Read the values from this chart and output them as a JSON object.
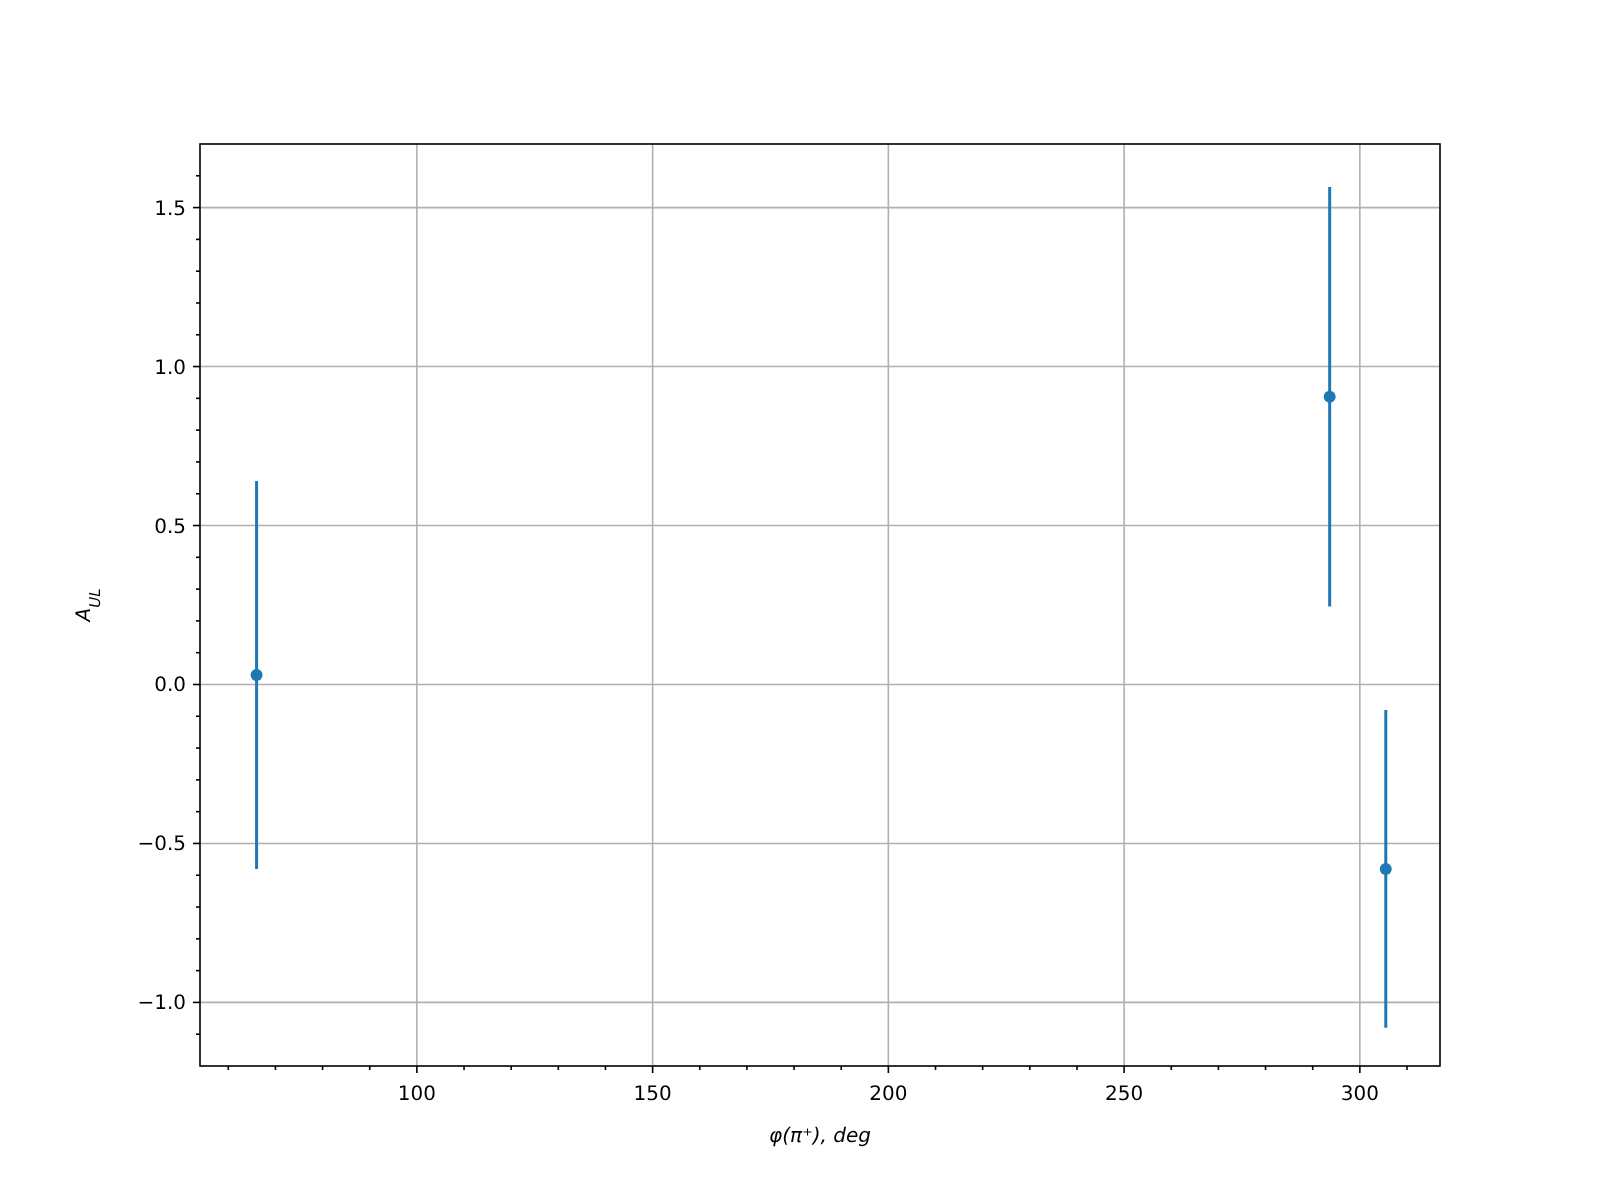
{
  "chart_data": {
    "type": "scatter",
    "xlabel": "φ(π⁺), deg",
    "ylabel": "A$_{UL}$",
    "x": [
      66,
      293.6,
      305.5
    ],
    "series": [
      {
        "color": "#1f77b4",
        "values": [
          0.03,
          0.905,
          -0.58
        ],
        "errors": [
          0.61,
          0.66,
          0.5
        ]
      }
    ],
    "xlim": [
      54,
      317
    ],
    "ylim": [
      -1.2,
      1.7
    ],
    "xticks": [
      {
        "value": 60,
        "label": null
      },
      {
        "value": 70,
        "label": null
      },
      {
        "value": 80,
        "label": null
      },
      {
        "value": 90,
        "label": null
      },
      100,
      {
        "value": 110,
        "label": null
      },
      {
        "value": 120,
        "label": null
      },
      {
        "value": 130,
        "label": null
      },
      {
        "value": 140,
        "label": null
      },
      150,
      {
        "value": 160,
        "label": null
      },
      {
        "value": 170,
        "label": null
      },
      {
        "value": 180,
        "label": null
      },
      {
        "value": 190,
        "label": null
      },
      200,
      {
        "value": 210,
        "label": null
      },
      {
        "value": 220,
        "label": null
      },
      {
        "value": 230,
        "label": null
      },
      {
        "value": 240,
        "label": null
      },
      250,
      {
        "value": 260,
        "label": null
      },
      {
        "value": 270,
        "label": null
      },
      {
        "value": 280,
        "label": null
      },
      {
        "value": 290,
        "label": null
      },
      300,
      {
        "value": 310,
        "label": null
      }
    ],
    "yticks": [
      {
        "value": -1.1,
        "label": null
      },
      {
        "value": -1.0,
        "label": "−1.0"
      },
      {
        "value": -0.9,
        "label": null
      },
      {
        "value": -0.8,
        "label": null
      },
      {
        "value": -0.7,
        "label": null
      },
      {
        "value": -0.6,
        "label": null
      },
      {
        "value": -0.5,
        "label": "−0.5"
      },
      {
        "value": -0.4,
        "label": null
      },
      {
        "value": -0.3,
        "label": null
      },
      {
        "value": -0.2,
        "label": null
      },
      {
        "value": -0.1,
        "label": null
      },
      {
        "value": 0,
        "label": "0.0"
      },
      {
        "value": 0.1,
        "label": null
      },
      {
        "value": 0.2,
        "label": null
      },
      {
        "value": 0.3,
        "label": null
      },
      {
        "value": 0.4,
        "label": null
      },
      {
        "value": 0.5,
        "label": "0.5"
      },
      {
        "value": 0.6,
        "label": null
      },
      {
        "value": 0.7,
        "label": null
      },
      {
        "value": 0.8,
        "label": null
      },
      {
        "value": 0.9,
        "label": null
      },
      {
        "value": 1.0,
        "label": "1.0"
      },
      {
        "value": 1.1,
        "label": null
      },
      {
        "value": 1.2,
        "label": null
      },
      {
        "value": 1.3,
        "label": null
      },
      {
        "value": 1.4,
        "label": null
      },
      {
        "value": 1.5,
        "label": "1.5"
      },
      {
        "value": 1.6,
        "label": null
      }
    ],
    "grid": true,
    "marker": "circle"
  }
}
